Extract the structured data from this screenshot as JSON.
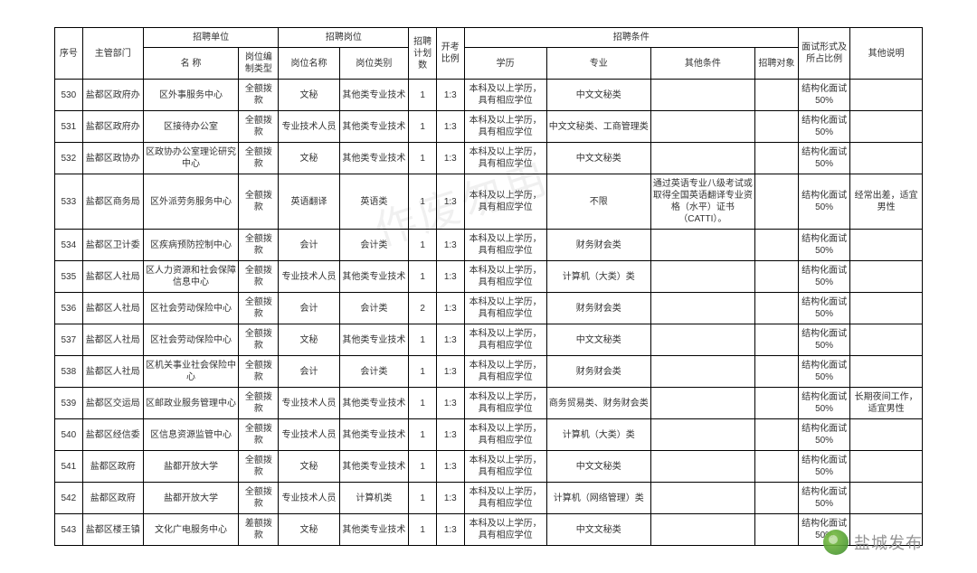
{
  "columns": {
    "seq": "序号",
    "dept": "主管部门",
    "unit_group": "招聘单位",
    "unit_name": "名 称",
    "unit_kind": "岗位编制类型",
    "post_group": "招聘岗位",
    "post_name": "岗位名称",
    "post_type": "岗位类别",
    "plan": "招聘计划数",
    "ratio": "开考比例",
    "cond_group": "招聘条件",
    "edu": "学历",
    "major": "专业",
    "other": "其他条件",
    "target": "招聘对象",
    "interview": "面试形式及所占比例",
    "remark": "其他说明"
  },
  "col_widths": {
    "seq": "3.2%",
    "dept": "7%",
    "unit_name": "11%",
    "unit_kind": "4.6%",
    "post_name": "7%",
    "post_type": "8%",
    "plan": "3.2%",
    "ratio": "3.2%",
    "edu": "9.5%",
    "major": "12%",
    "other": "12%",
    "target": "5%",
    "interview": "6%",
    "remark": "8.3%"
  },
  "rows": [
    {
      "seq": "530",
      "dept": "盐都区政府办",
      "unit_name": "区外事服务中心",
      "unit_kind": "全额拨款",
      "post_name": "文秘",
      "post_type": "其他类专业技术",
      "plan": "1",
      "ratio": "1:3",
      "edu": "本科及以上学历，具有相应学位",
      "major": "中文文秘类",
      "other": "",
      "target": "",
      "interview": "结构化面试50%",
      "remark": ""
    },
    {
      "seq": "531",
      "dept": "盐都区政府办",
      "unit_name": "区接待办公室",
      "unit_kind": "全额拨款",
      "post_name": "专业技术人员",
      "post_type": "其他类专业技术",
      "plan": "1",
      "ratio": "1:3",
      "edu": "本科及以上学历，具有相应学位",
      "major": "中文文秘类、工商管理类",
      "other": "",
      "target": "",
      "interview": "结构化面试50%",
      "remark": ""
    },
    {
      "seq": "532",
      "dept": "盐都区政协办",
      "unit_name": "区政协办公室理论研究中心",
      "unit_kind": "全额拨款",
      "post_name": "文秘",
      "post_type": "其他类专业技术",
      "plan": "1",
      "ratio": "1:3",
      "edu": "本科及以上学历，具有相应学位",
      "major": "中文文秘类",
      "other": "",
      "target": "",
      "interview": "结构化面试50%",
      "remark": ""
    },
    {
      "seq": "533",
      "dept": "盐都区商务局",
      "unit_name": "区外派劳务服务中心",
      "unit_kind": "全额拨款",
      "post_name": "英语翻译",
      "post_type": "英语类",
      "plan": "1",
      "ratio": "1:3",
      "edu": "本科及以上学历，具有相应学位",
      "major": "不限",
      "other": "通过英语专业八级考试或取得全国英语翻译专业资格（水平）证书（CATTI）。",
      "target": "",
      "interview": "结构化面试50%",
      "remark": "经常出差，适宜男性"
    },
    {
      "seq": "534",
      "dept": "盐都区卫计委",
      "unit_name": "区疾病预防控制中心",
      "unit_kind": "全额拨款",
      "post_name": "会计",
      "post_type": "会计类",
      "plan": "1",
      "ratio": "1:3",
      "edu": "本科及以上学历，具有相应学位",
      "major": "财务财会类",
      "other": "",
      "target": "",
      "interview": "结构化面试50%",
      "remark": ""
    },
    {
      "seq": "535",
      "dept": "盐都区人社局",
      "unit_name": "区人力资源和社会保障信息中心",
      "unit_kind": "全额拨款",
      "post_name": "专业技术人员",
      "post_type": "其他类专业技术",
      "plan": "1",
      "ratio": "1:3",
      "edu": "本科及以上学历，具有相应学位",
      "major": "计算机（大类）类",
      "other": "",
      "target": "",
      "interview": "结构化面试50%",
      "remark": ""
    },
    {
      "seq": "536",
      "dept": "盐都区人社局",
      "unit_name": "区社会劳动保险中心",
      "unit_kind": "全额拨款",
      "post_name": "会计",
      "post_type": "会计类",
      "plan": "2",
      "ratio": "1:3",
      "edu": "本科及以上学历，具有相应学位",
      "major": "财务财会类",
      "other": "",
      "target": "",
      "interview": "结构化面试50%",
      "remark": ""
    },
    {
      "seq": "537",
      "dept": "盐都区人社局",
      "unit_name": "区社会劳动保险中心",
      "unit_kind": "全额拨款",
      "post_name": "文秘",
      "post_type": "其他类专业技术",
      "plan": "1",
      "ratio": "1:3",
      "edu": "本科及以上学历，具有相应学位",
      "major": "中文文秘类",
      "other": "",
      "target": "",
      "interview": "结构化面试50%",
      "remark": ""
    },
    {
      "seq": "538",
      "dept": "盐都区人社局",
      "unit_name": "区机关事业社会保险中心",
      "unit_kind": "全额拨款",
      "post_name": "会计",
      "post_type": "会计类",
      "plan": "1",
      "ratio": "1:3",
      "edu": "本科及以上学历，具有相应学位",
      "major": "财务财会类",
      "other": "",
      "target": "",
      "interview": "结构化面试50%",
      "remark": ""
    },
    {
      "seq": "539",
      "dept": "盐都区交运局",
      "unit_name": "区邮政业服务管理中心",
      "unit_kind": "全额拨款",
      "post_name": "专业技术人员",
      "post_type": "其他类专业技术",
      "plan": "1",
      "ratio": "1:3",
      "edu": "本科及以上学历，具有相应学位",
      "major": "商务贸易类、财务财会类",
      "other": "",
      "target": "",
      "interview": "结构化面试50%",
      "remark": "长期夜间工作，适宜男性"
    },
    {
      "seq": "540",
      "dept": "盐都区经信委",
      "unit_name": "区信息资源监管中心",
      "unit_kind": "全额拨款",
      "post_name": "专业技术人员",
      "post_type": "其他类专业技术",
      "plan": "1",
      "ratio": "1:3",
      "edu": "本科及以上学历，具有相应学位",
      "major": "计算机（大类）类",
      "other": "",
      "target": "",
      "interview": "结构化面试50%",
      "remark": ""
    },
    {
      "seq": "541",
      "dept": "盐都区政府",
      "unit_name": "盐都开放大学",
      "unit_kind": "全额拨款",
      "post_name": "文秘",
      "post_type": "其他类专业技术",
      "plan": "1",
      "ratio": "1:3",
      "edu": "本科及以上学历，具有相应学位",
      "major": "中文文秘类",
      "other": "",
      "target": "",
      "interview": "结构化面试50%",
      "remark": ""
    },
    {
      "seq": "542",
      "dept": "盐都区政府",
      "unit_name": "盐都开放大学",
      "unit_kind": "全额拨款",
      "post_name": "专业技术人员",
      "post_type": "计算机类",
      "plan": "1",
      "ratio": "1:3",
      "edu": "本科及以上学历，具有相应学位",
      "major": "计算机（网络管理）类",
      "other": "",
      "target": "",
      "interview": "结构化面试50%",
      "remark": ""
    },
    {
      "seq": "543",
      "dept": "盐都区楼王镇",
      "unit_name": "文化广电服务中心",
      "unit_kind": "差额拨款",
      "post_name": "文秘",
      "post_type": "其他类专业技术",
      "plan": "1",
      "ratio": "1:3",
      "edu": "本科及以上学历，具有相应学位",
      "major": "中文文秘类",
      "other": "",
      "target": "",
      "interview": "结构化面试50%",
      "remark": ""
    }
  ],
  "watermark_text": "盐城发布",
  "faint_watermark": "作废勿用"
}
